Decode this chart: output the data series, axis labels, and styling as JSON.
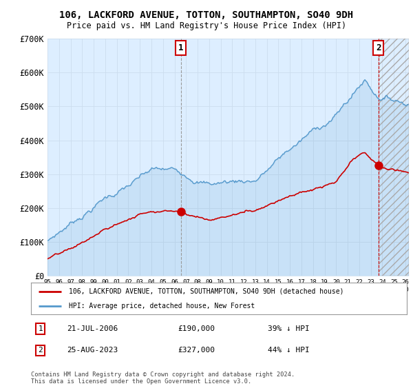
{
  "title": "106, LACKFORD AVENUE, TOTTON, SOUTHAMPTON, SO40 9DH",
  "subtitle": "Price paid vs. HM Land Registry's House Price Index (HPI)",
  "legend_line1": "106, LACKFORD AVENUE, TOTTON, SOUTHAMPTON, SO40 9DH (detached house)",
  "legend_line2": "HPI: Average price, detached house, New Forest",
  "footer": "Contains HM Land Registry data © Crown copyright and database right 2024.\nThis data is licensed under the Open Government Licence v3.0.",
  "ylim": [
    0,
    700000
  ],
  "yticks": [
    0,
    100000,
    200000,
    300000,
    400000,
    500000,
    600000,
    700000
  ],
  "ytick_labels": [
    "£0",
    "£100K",
    "£200K",
    "£300K",
    "£400K",
    "£500K",
    "£600K",
    "£700K"
  ],
  "house_color": "#cc0000",
  "hpi_color": "#5599cc",
  "hpi_fill_color": "#ddeeff",
  "background_color": "#ffffff",
  "grid_color": "#ccddee",
  "annotation_box_color": "#cc0000",
  "ann1_x": 2006.55,
  "ann1_y": 190000,
  "ann2_x": 2023.65,
  "ann2_y": 327000,
  "xlim_start": 1995.0,
  "xlim_end": 2026.3
}
